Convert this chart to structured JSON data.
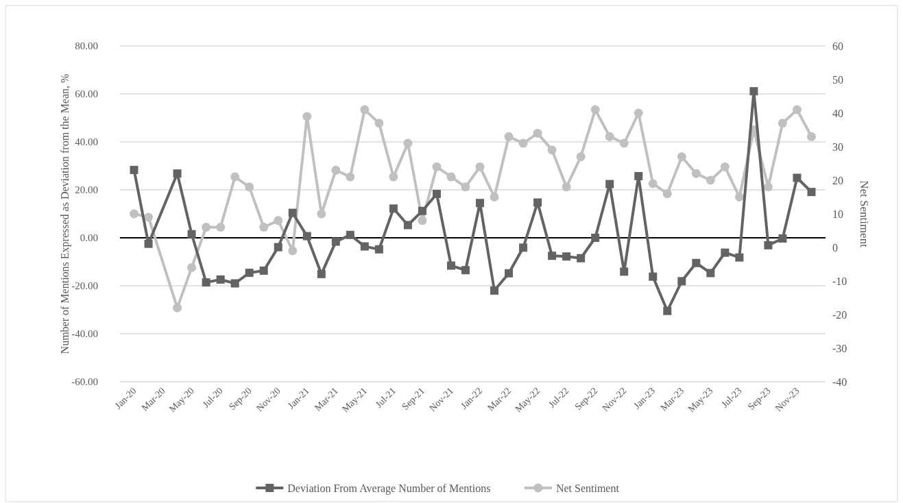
{
  "chart_data": {
    "type": "line",
    "ylabel": "Number of Mentions Expressed as Deviation from the Mean, %",
    "y2label": "Net Sentiment",
    "categories": [
      "Jan-20",
      null,
      "Mar-20",
      null,
      "May-20",
      null,
      "Jul-20",
      null,
      "Sep-20",
      null,
      "Nov-20",
      null,
      "Jan-21",
      null,
      "Mar-21",
      null,
      "May-21",
      null,
      "Jul-21",
      null,
      "Sep-21",
      null,
      "Nov-21",
      null,
      "Jan-22",
      null,
      "Mar-22",
      null,
      "May-22",
      null,
      "Jul-22",
      null,
      "Sep-22",
      null,
      "Nov-22",
      null,
      "Jan-23",
      null,
      "Mar-23",
      null,
      "May-23",
      null,
      "Jul-23",
      null,
      "Sep-23",
      null,
      "Nov-23",
      null
    ],
    "series": [
      {
        "name": "Deviation From Average Number of Mentions",
        "color": "#636363",
        "marker": "square",
        "values": [
          28.3,
          -2.5,
          null,
          26.8,
          1.5,
          -18.6,
          -17.4,
          -19.0,
          -14.6,
          -13.7,
          -3.9,
          10.4,
          0.7,
          -15.1,
          -1.6,
          1.2,
          -3.6,
          -4.8,
          12.2,
          5.3,
          11.2,
          18.3,
          -11.6,
          -13.5,
          14.5,
          -22.0,
          -14.8,
          -4.1,
          14.7,
          -7.5,
          -7.8,
          -8.5,
          0.0,
          22.4,
          -14.1,
          25.7,
          -16.2,
          -30.5,
          -18.1,
          -10.5,
          -14.7,
          -6.2,
          -8.2,
          61.1,
          -3.1,
          -0.3,
          25.0,
          19.1
        ]
      },
      {
        "name": "Net Sentiment",
        "color": "#c0c0c0",
        "marker": "circle",
        "axis": "y2",
        "values": [
          10,
          9,
          null,
          -18,
          -6,
          6,
          6,
          21,
          18,
          6,
          8,
          -1,
          39,
          10,
          23,
          21,
          41,
          37,
          21,
          31,
          8,
          24,
          21,
          18,
          24,
          15,
          33,
          31,
          34,
          29,
          18,
          27,
          41,
          33,
          31,
          40,
          19,
          16,
          27,
          22,
          20,
          24,
          15,
          35,
          18,
          37,
          41,
          33
        ]
      }
    ],
    "ylim": [
      -60,
      80
    ],
    "yticks": [
      {
        "value": -60,
        "label": "-60.00"
      },
      {
        "value": -40,
        "label": "-40.00"
      },
      {
        "value": -20,
        "label": "-20.00"
      },
      {
        "value": 0,
        "label": "0.00"
      },
      {
        "value": 20,
        "label": "20.00"
      },
      {
        "value": 40,
        "label": "40.00"
      },
      {
        "value": 60,
        "label": "60.00"
      },
      {
        "value": 80,
        "label": "80.00"
      }
    ],
    "y2lim": [
      -40,
      60
    ],
    "y2ticks": [
      -40,
      -30,
      -20,
      -10,
      0,
      10,
      20,
      30,
      40,
      50,
      60
    ],
    "ref_lines": [
      {
        "axis": "y",
        "value": 0,
        "color": "#000000"
      }
    ],
    "grid": "y",
    "legend": "bottom",
    "line_style": "solid"
  }
}
